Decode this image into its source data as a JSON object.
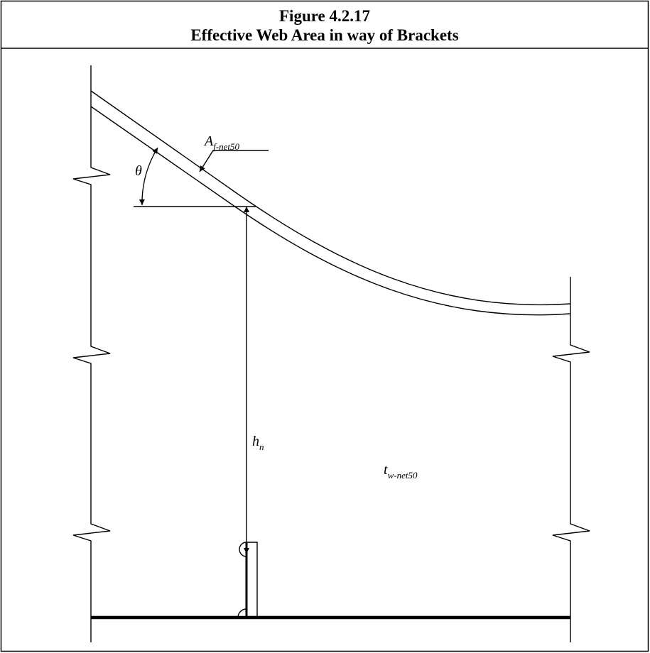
{
  "title": {
    "number": "Figure 4.2.17",
    "caption": "Effective Web Area in way of Brackets"
  },
  "labels": {
    "angle": {
      "symbol": "θ"
    },
    "flange_area": {
      "symbol": "A",
      "subscript": "f-net50"
    },
    "web_height": {
      "symbol": "h",
      "subscript": "n"
    },
    "web_thickness": {
      "symbol": "t",
      "subscript": "w-net50"
    }
  }
}
